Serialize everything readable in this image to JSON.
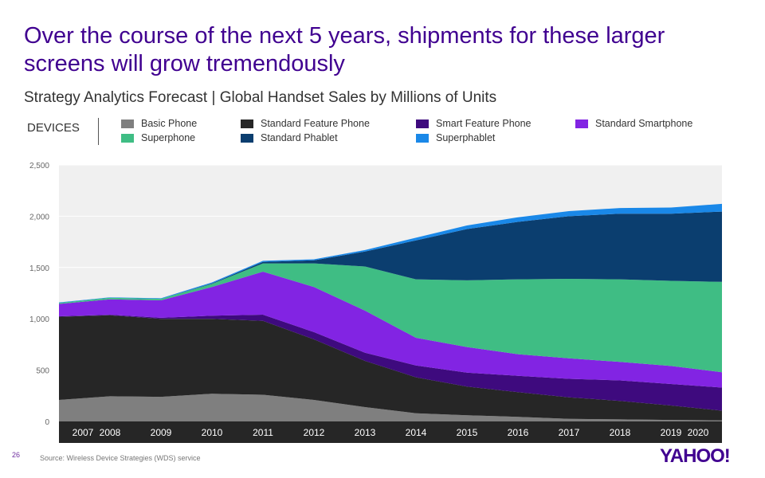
{
  "slide": {
    "title": "Over the course of the next 5 years, shipments for these larger screens will grow tremendously",
    "subtitle": "Strategy Analytics Forecast | Global Handset Sales by Millions of Units",
    "devices_label": "DEVICES",
    "page_number": "26",
    "source": "Source: Wireless Device Strategies (WDS) service",
    "logo": "YAHOO!"
  },
  "chart_data": {
    "type": "area",
    "stacked": true,
    "x": [
      "2007",
      "2008",
      "2009",
      "2010",
      "2011",
      "2012",
      "2013",
      "2014",
      "2015",
      "2016",
      "2017",
      "2018",
      "2019",
      "2020"
    ],
    "ylim": [
      0,
      2500
    ],
    "yticks": [
      "0",
      "500",
      "1,000",
      "1,500",
      "2,000",
      "2,500"
    ],
    "ytick_values": [
      0,
      500,
      1000,
      1500,
      2000,
      2500
    ],
    "series": [
      {
        "name": "Basic Phone",
        "color": "#7f7f7f",
        "values": [
          210,
          245,
          240,
          270,
          260,
          210,
          140,
          80,
          60,
          45,
          25,
          20,
          15,
          10
        ]
      },
      {
        "name": "Standard Feature Phone",
        "color": "#262626",
        "values": [
          810,
          790,
          760,
          730,
          720,
          590,
          450,
          350,
          280,
          240,
          210,
          180,
          140,
          95
        ]
      },
      {
        "name": "Smart Feature Phone",
        "color": "#3e0a7e",
        "values": [
          5,
          5,
          10,
          30,
          60,
          70,
          80,
          115,
          135,
          160,
          180,
          200,
          210,
          225
        ]
      },
      {
        "name": "Standard Smartphone",
        "color": "#8224e3",
        "values": [
          120,
          150,
          170,
          280,
          420,
          440,
          410,
          270,
          250,
          210,
          200,
          180,
          175,
          150
        ]
      },
      {
        "name": "Superphone",
        "color": "#3fbd84",
        "values": [
          10,
          15,
          15,
          30,
          80,
          230,
          430,
          570,
          650,
          730,
          775,
          805,
          830,
          880
        ]
      },
      {
        "name": "Standard Phablet",
        "color": "#0b3e6f",
        "values": [
          0,
          0,
          0,
          5,
          15,
          30,
          145,
          380,
          500,
          560,
          610,
          640,
          655,
          685
        ]
      },
      {
        "name": "Superphablet",
        "color": "#1a88e8",
        "values": [
          5,
          5,
          5,
          10,
          10,
          10,
          15,
          25,
          35,
          45,
          50,
          55,
          60,
          75
        ]
      }
    ]
  }
}
